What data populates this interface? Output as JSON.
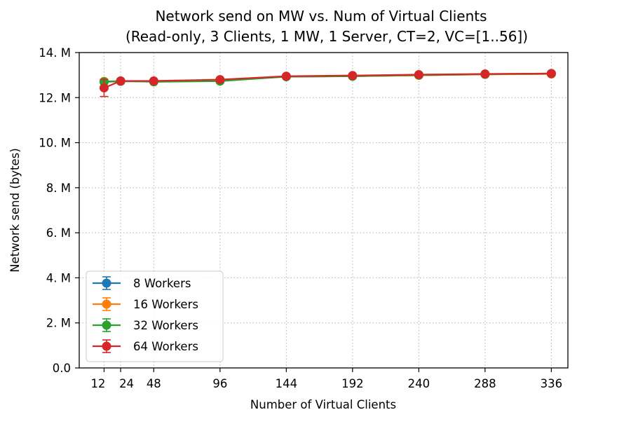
{
  "chart_data": {
    "type": "line",
    "title_line1": "Network send on MW vs. Num of Virtual Clients",
    "title_line2": "(Read-only, 3 Clients, 1 MW, 1 Server, CT=2, VC=[1..56])",
    "xlabel": "Number of Virtual Clients",
    "ylabel": "Network send (bytes)",
    "xlim": [
      -6,
      348
    ],
    "ylim": [
      0,
      14000000
    ],
    "x_ticks": [
      12,
      24,
      48,
      96,
      144,
      192,
      240,
      288,
      336
    ],
    "x_tick_labels": [
      "12",
      "24",
      "48",
      "96",
      "144",
      "192",
      "240",
      "288",
      "336"
    ],
    "y_ticks": [
      0,
      2000000,
      4000000,
      6000000,
      8000000,
      10000000,
      12000000,
      14000000
    ],
    "y_tick_labels": [
      "0.0",
      "2. M",
      "4. M",
      "6. M",
      "8. M",
      "10. M",
      "12. M",
      "14. M"
    ],
    "grid": true,
    "legend_position": "lower-left",
    "x": [
      12,
      24,
      48,
      96,
      144,
      192,
      240,
      288,
      336
    ],
    "series": [
      {
        "name": "8 Workers",
        "color": "#1f77b4",
        "values": [
          12700000,
          12720000,
          12720000,
          12750000,
          12930000,
          12950000,
          12990000,
          13030000,
          13050000
        ],
        "errors": [
          50000,
          30000,
          30000,
          30000,
          30000,
          30000,
          30000,
          30000,
          30000
        ]
      },
      {
        "name": "16 Workers",
        "color": "#ff7f0e",
        "values": [
          12720000,
          12730000,
          12730000,
          12760000,
          12940000,
          12950000,
          12990000,
          13030000,
          13050000
        ],
        "errors": [
          60000,
          30000,
          30000,
          30000,
          30000,
          30000,
          30000,
          30000,
          30000
        ]
      },
      {
        "name": "32 Workers",
        "color": "#2ca02c",
        "values": [
          12700000,
          12740000,
          12700000,
          12730000,
          12930000,
          12950000,
          13000000,
          13040000,
          13070000
        ],
        "errors": [
          60000,
          30000,
          30000,
          30000,
          30000,
          30000,
          30000,
          30000,
          30000
        ]
      },
      {
        "name": "64 Workers",
        "color": "#d62728",
        "values": [
          12430000,
          12740000,
          12740000,
          12800000,
          12950000,
          12980000,
          13020000,
          13050000,
          13070000
        ],
        "errors": [
          380000,
          50000,
          30000,
          30000,
          30000,
          30000,
          30000,
          30000,
          30000
        ]
      }
    ]
  }
}
